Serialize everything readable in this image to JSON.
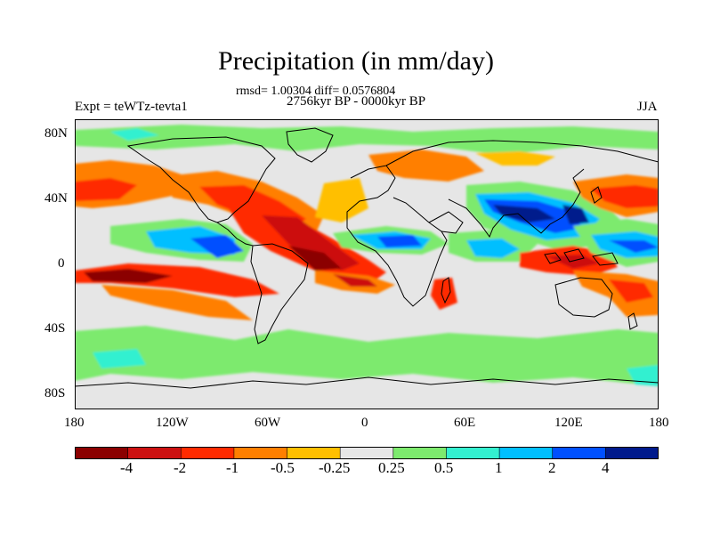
{
  "title": "Precipitation (in mm/day)",
  "stats": "rmsd= 1.00304 diff= 0.0576804",
  "period": "2756kyr BP - 0000kyr BP",
  "experiment": "Expt = teWTz-tevta1",
  "season": "JJA",
  "axes": {
    "lat_ticks": [
      "80N",
      "40N",
      "0",
      "40S",
      "80S"
    ],
    "lon_ticks": [
      "180",
      "120W",
      "60W",
      "0",
      "60E",
      "120E",
      "180"
    ]
  },
  "colorbar": {
    "colors": [
      "#8b0000",
      "#cc1010",
      "#ff2a00",
      "#ff7f00",
      "#ffbf00",
      "#e6e6e6",
      "#7dea6e",
      "#33f0d0",
      "#00bfff",
      "#0050ff",
      "#001a8c"
    ],
    "labels": [
      "-4",
      "-2",
      "-1",
      "-0.5",
      "-0.25",
      "0.25",
      "0.5",
      "1",
      "2",
      "4"
    ]
  },
  "colors": {
    "background": "#e6e6e6",
    "coast": "#000000"
  }
}
